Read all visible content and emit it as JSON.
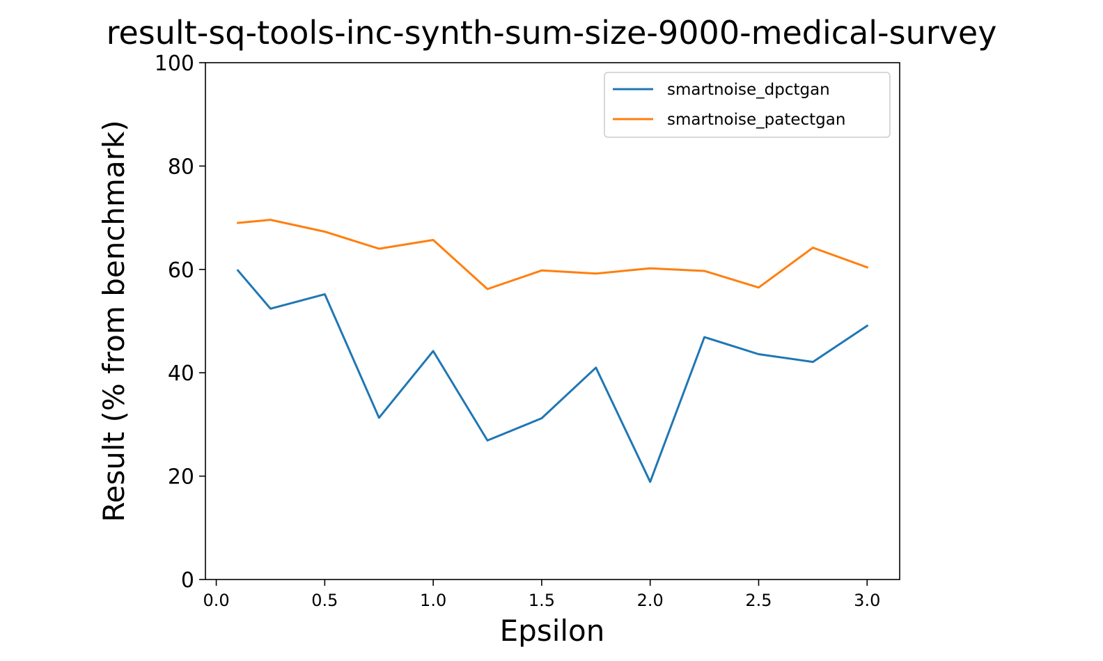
{
  "chart_data": {
    "type": "line",
    "title": "result-sq-tools-inc-synth-sum-size-9000-medical-survey",
    "xlabel": "Epsilon",
    "ylabel": "Result (% from benchmark)",
    "xlim": [
      -0.05,
      3.15
    ],
    "ylim": [
      0,
      100
    ],
    "xticks": [
      0.0,
      0.5,
      1.0,
      1.5,
      2.0,
      2.5,
      3.0
    ],
    "xtick_labels": [
      "0.0",
      "0.5",
      "1.0",
      "1.5",
      "2.0",
      "2.5",
      "3.0"
    ],
    "yticks": [
      0,
      20,
      40,
      60,
      80,
      100
    ],
    "ytick_labels": [
      "0",
      "20",
      "40",
      "60",
      "80",
      "100"
    ],
    "grid": false,
    "legend_position": "top-right",
    "x": [
      0.1,
      0.25,
      0.5,
      0.75,
      1.0,
      1.25,
      1.5,
      1.75,
      2.0,
      2.25,
      2.5,
      2.75,
      3.0
    ],
    "series": [
      {
        "name": "smartnoise_dpctgan",
        "color": "#1f77b4",
        "values": [
          59.8,
          52.4,
          55.2,
          31.3,
          44.2,
          26.9,
          31.2,
          41.0,
          18.9,
          46.9,
          43.6,
          42.1,
          49.1
        ]
      },
      {
        "name": "smartnoise_patectgan",
        "color": "#ff7f0e",
        "values": [
          69.0,
          69.6,
          67.3,
          64.0,
          65.7,
          56.2,
          59.8,
          59.2,
          60.2,
          59.7,
          56.5,
          64.2,
          60.4
        ]
      }
    ]
  }
}
